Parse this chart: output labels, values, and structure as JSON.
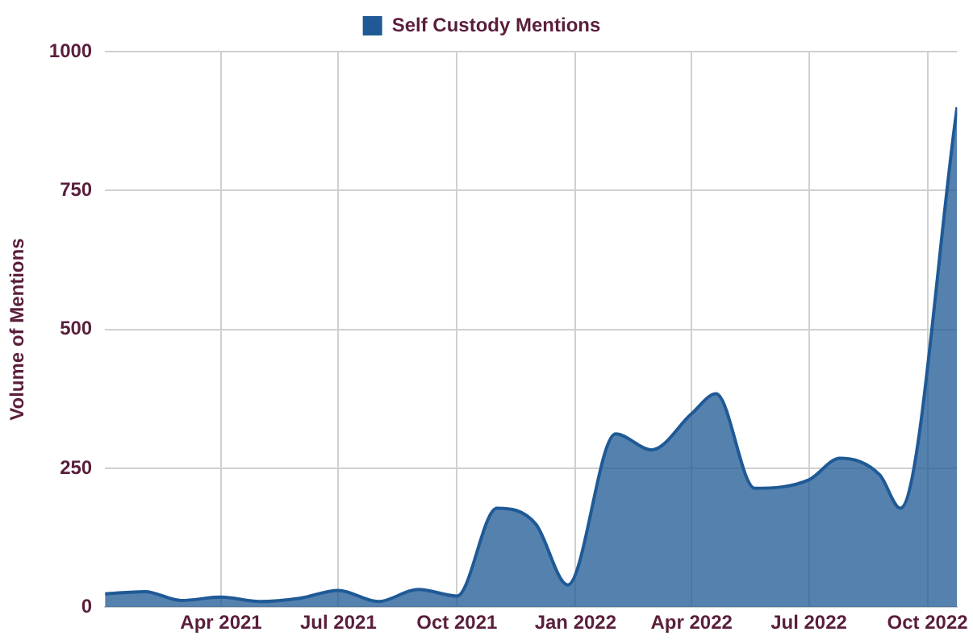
{
  "chart_data": {
    "type": "area",
    "ylabel": "Volume of Mentions",
    "x": [
      "2021-01-01",
      "2021-02-01",
      "2021-03-01",
      "2021-04-01",
      "2021-05-01",
      "2021-06-01",
      "2021-07-01",
      "2021-08-01",
      "2021-09-01",
      "2021-10-01",
      "2021-11-01",
      "2021-12-01",
      "2021-12-26",
      "2022-02-01",
      "2022-03-01",
      "2022-04-01",
      "2022-04-20",
      "2022-05-20",
      "2022-07-01",
      "2022-07-25",
      "2022-08-25",
      "2022-09-10",
      "2022-10-24"
    ],
    "series": [
      {
        "name": "Self Custody Mentions",
        "color": "#1f5a96",
        "values": [
          24,
          28,
          12,
          18,
          10,
          16,
          30,
          10,
          32,
          20,
          178,
          150,
          40,
          312,
          283,
          348,
          384,
          214,
          229,
          268,
          238,
          178,
          900
        ]
      }
    ],
    "xlim": [
      "2021-01-01",
      "2022-10-24"
    ],
    "xticks": [
      {
        "value": "2021-04-01",
        "label": "Apr 2021"
      },
      {
        "value": "2021-07-01",
        "label": "Jul 2021"
      },
      {
        "value": "2021-10-01",
        "label": "Oct 2021"
      },
      {
        "value": "2022-01-01",
        "label": "Jan 2022"
      },
      {
        "value": "2022-04-01",
        "label": "Apr 2022"
      },
      {
        "value": "2022-07-01",
        "label": "Jul 2022"
      },
      {
        "value": "2022-10-01",
        "label": "Oct 2022"
      }
    ],
    "ylim": [
      0,
      1000
    ],
    "yticks": [
      0,
      250,
      500,
      750,
      1000
    ],
    "grid": true,
    "legend": "top",
    "marker": "none",
    "line_style": "solid"
  }
}
